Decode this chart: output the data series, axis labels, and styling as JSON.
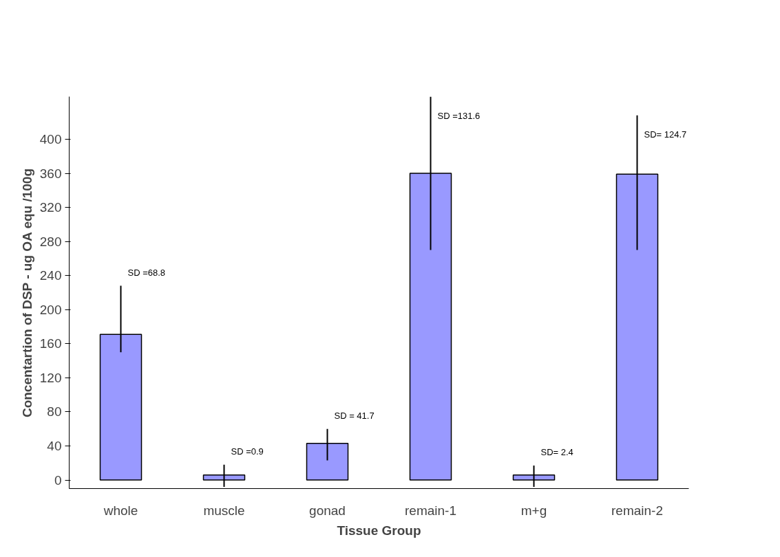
{
  "chart_data": {
    "type": "bar",
    "xlabel": "Tissue Group",
    "ylabel": "Concentartion of DSP - ug OA equ /100g",
    "categories": [
      "whole",
      "muscle",
      "gonad",
      "remain-1",
      "m+g",
      "remain-2"
    ],
    "values": [
      171,
      6,
      43,
      360,
      6,
      359
    ],
    "errors": [
      [
        150,
        228
      ],
      [
        -8,
        18
      ],
      [
        23,
        60
      ],
      [
        270,
        450
      ],
      [
        -8,
        17
      ],
      [
        270,
        428
      ]
    ],
    "color": "#9999ff",
    "ylim": [
      -10,
      450
    ],
    "yticks": [
      0,
      40,
      80,
      120,
      160,
      200,
      240,
      280,
      320,
      360,
      400
    ],
    "grid": false,
    "annotations": [
      "SD =68.8",
      "SD =0.9",
      "SD = 41.7",
      "SD =131.6",
      "SD= 2.4",
      "SD= 124.7"
    ]
  }
}
